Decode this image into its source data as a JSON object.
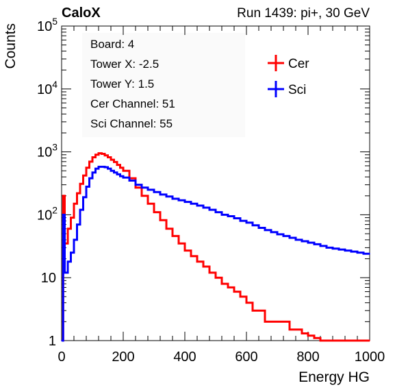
{
  "header": {
    "experiment": "CaloX",
    "run_info": "Run 1439: pi+, 30 GeV"
  },
  "info_box": {
    "lines": [
      "Board: 4",
      "Tower X: -2.5",
      "Tower Y: 1.5",
      "Cer Channel: 51",
      "Sci Channel: 55"
    ]
  },
  "chart_data": {
    "type": "line",
    "title": "",
    "xlabel": "Energy HG",
    "ylabel": "Counts",
    "xlim": [
      0,
      1000
    ],
    "ylim": [
      1,
      100000
    ],
    "yscale": "log",
    "x_ticks": [
      "0",
      "200",
      "400",
      "600",
      "800",
      "1000"
    ],
    "y_ticks": [
      {
        "base": "1",
        "exp": ""
      },
      {
        "base": "10",
        "exp": ""
      },
      {
        "base": "10",
        "exp": "2"
      },
      {
        "base": "10",
        "exp": "3"
      },
      {
        "base": "10",
        "exp": "4"
      },
      {
        "base": "10",
        "exp": "5"
      }
    ],
    "legend_position": "top-right",
    "grid": false,
    "series": [
      {
        "name": "Cer",
        "color": "#ff0000",
        "x": [
          0,
          5,
          10,
          20,
          30,
          40,
          50,
          60,
          70,
          80,
          90,
          100,
          110,
          120,
          130,
          140,
          150,
          160,
          170,
          180,
          190,
          200,
          220,
          240,
          260,
          280,
          300,
          320,
          340,
          360,
          380,
          400,
          420,
          440,
          460,
          480,
          500,
          520,
          540,
          560,
          580,
          600,
          620,
          640,
          660,
          680,
          700,
          720,
          740,
          760,
          780,
          800,
          820,
          840,
          860,
          880,
          900,
          920,
          940,
          960,
          980,
          1000
        ],
        "values": [
          1,
          200,
          35,
          60,
          90,
          150,
          220,
          310,
          420,
          560,
          700,
          820,
          900,
          950,
          930,
          880,
          820,
          750,
          690,
          620,
          560,
          500,
          380,
          270,
          200,
          150,
          110,
          82,
          60,
          46,
          35,
          27,
          22,
          18,
          15,
          12,
          10,
          8,
          7,
          6,
          5,
          4,
          3,
          3,
          2,
          2,
          2,
          2,
          1.5,
          1.5,
          1.3,
          1.2,
          1.1,
          1,
          1,
          1,
          1,
          1,
          1,
          1,
          1,
          1
        ]
      },
      {
        "name": "Sci",
        "color": "#0000ff",
        "x": [
          0,
          5,
          10,
          20,
          30,
          40,
          50,
          60,
          70,
          80,
          90,
          100,
          110,
          120,
          130,
          140,
          150,
          160,
          170,
          180,
          190,
          200,
          220,
          240,
          260,
          280,
          300,
          320,
          340,
          360,
          380,
          400,
          420,
          440,
          460,
          480,
          500,
          520,
          540,
          560,
          580,
          600,
          620,
          640,
          660,
          680,
          700,
          720,
          740,
          760,
          780,
          800,
          820,
          840,
          860,
          880,
          900,
          920,
          940,
          960,
          980,
          1000
        ],
        "values": [
          1,
          100,
          12,
          18,
          25,
          40,
          70,
          120,
          190,
          280,
          380,
          470,
          540,
          580,
          580,
          570,
          540,
          500,
          470,
          440,
          410,
          390,
          350,
          300,
          270,
          250,
          230,
          210,
          195,
          180,
          170,
          160,
          150,
          140,
          130,
          120,
          110,
          100,
          95,
          88,
          80,
          75,
          68,
          62,
          57,
          53,
          49,
          46,
          43,
          40,
          38,
          36,
          34,
          32,
          30,
          29,
          28,
          27,
          26,
          25,
          24,
          24
        ]
      }
    ]
  }
}
